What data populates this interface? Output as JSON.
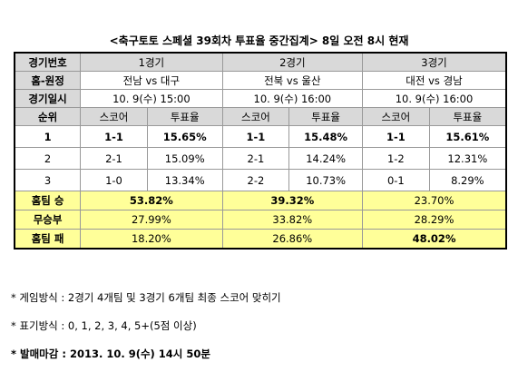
{
  "title": "<축구토토 스페셜 39회차 투표율 중간집계> 8일 오전 8시 현재",
  "table": {
    "game_row": [
      "경기번호",
      "1경기",
      "2경기",
      "3경기"
    ],
    "match_row": [
      "홈-원정",
      "전남 vs 대구",
      "전북 vs 울산",
      "대전 vs 경남"
    ],
    "date_row": [
      "경기일시",
      "10. 9(수) 15:00",
      "10. 9(수) 16:00",
      "10. 9(수) 16:00"
    ],
    "sub_header": [
      "순위",
      "스코어",
      "투표율",
      "스코어",
      "투표율",
      "스코어",
      "투표율"
    ],
    "rank_rows": [
      [
        "1",
        "1-1",
        "15.65%",
        "1-1",
        "15.48%",
        "1-1",
        "15.61%"
      ],
      [
        "2",
        "2-1",
        "15.09%",
        "2-1",
        "14.24%",
        "1-2",
        "12.31%"
      ],
      [
        "3",
        "1-0",
        "13.34%",
        "2-2",
        "10.73%",
        "0-1",
        "8.29%"
      ]
    ],
    "result_rows": [
      [
        "홈팀 승",
        "53.82%",
        "39.32%",
        "23.70%"
      ],
      [
        "무승부",
        "27.99%",
        "33.82%",
        "28.29%"
      ],
      [
        "홈팀 패",
        "18.20%",
        "26.86%",
        "48.02%"
      ]
    ]
  },
  "notes": [
    "* 게임방식 : 2경기 4개팀 및 3경기 6개팀 최종 스코어 맞히기",
    "* 표기방식 : 0, 1, 2, 3, 4, 5+(5점 이상)",
    "* 발매마감 : 2013. 10. 9(수) 14시 50분"
  ]
}
